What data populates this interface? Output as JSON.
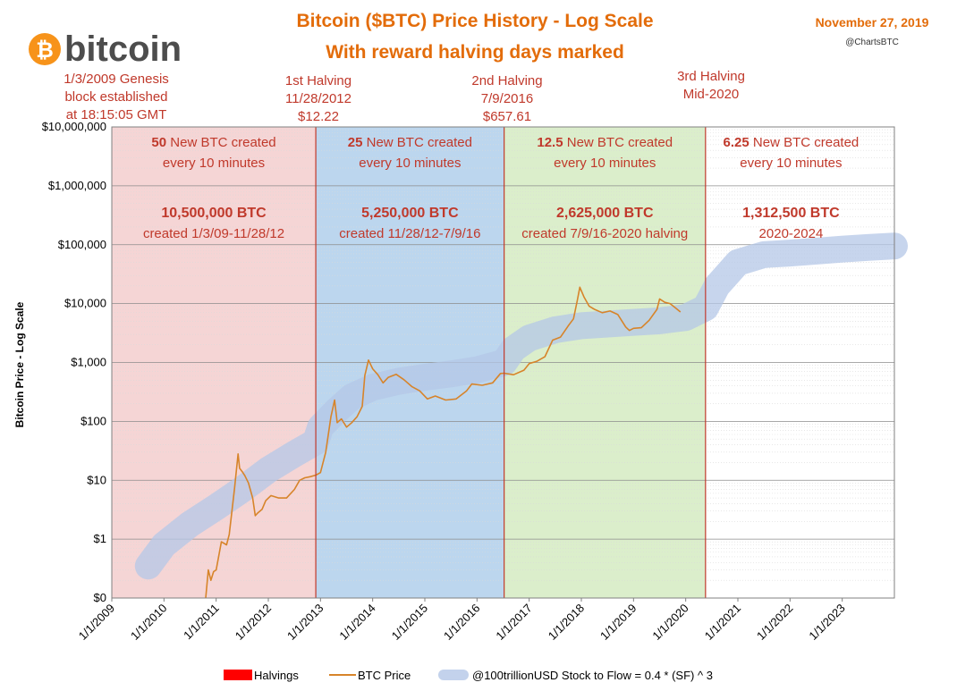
{
  "header": {
    "title_line1": "Bitcoin ($BTC) Price History - Log Scale",
    "title_line2": "With reward halving days marked",
    "date": "November 27, 2019",
    "handle": "@ChartsBTC",
    "logo_text": "bitcoin",
    "logo_symbol": "₿"
  },
  "annotations": {
    "genesis": [
      "1/3/2009 Genesis",
      "block established",
      "at 18:15:05 GMT"
    ],
    "halving1": [
      "1st Halving",
      "11/28/2012",
      "$12.22"
    ],
    "halving2": [
      "2nd Halving",
      "7/9/2016",
      "$657.61"
    ],
    "halving3": [
      "3rd Halving",
      "Mid-2020"
    ]
  },
  "eras": [
    {
      "reward_num": "50",
      "reward_text": " New BTC created",
      "every": "every 10 minutes",
      "supply": "10,500,000 BTC",
      "period": "created 1/3/09-11/28/12",
      "start": 2009.0,
      "end": 2012.91,
      "color": "#f5d5d5"
    },
    {
      "reward_num": "25",
      "reward_text": " New BTC created",
      "every": "every 10 minutes",
      "supply": "5,250,000 BTC",
      "period": "created 11/28/12-7/9/16",
      "start": 2012.91,
      "end": 2016.52,
      "color": "#bcd6ee"
    },
    {
      "reward_num": "12.5",
      "reward_text": " New BTC created",
      "every": "every 10 minutes",
      "supply": "2,625,000 BTC",
      "period": "created 7/9/16-2020 halving",
      "start": 2016.52,
      "end": 2020.38,
      "color": "#dbeecb"
    },
    {
      "reward_num": "6.25",
      "reward_text": " New BTC created",
      "every": "every 10 minutes",
      "supply": "1,312,500 BTC",
      "period": "2020-2024",
      "start": 2020.38,
      "end": 2024.0,
      "color": "#ffffff"
    }
  ],
  "legend": {
    "halvings": "Halvings",
    "price": "BTC Price",
    "s2f": "@100trillionUSD Stock to Flow = 0.4 * (SF) ^ 3"
  },
  "colors": {
    "price": "#d7842a",
    "s2f": "#b4c7e7",
    "halving": "#c0392b",
    "legend_halving": "#ff0000"
  },
  "chart_data": {
    "type": "line",
    "title": "Bitcoin ($BTC) Price History - Log Scale",
    "subtitle": "With reward halving days marked",
    "ylabel": "Bitcoin Price - Log Scale",
    "xlabel": "",
    "y_scale": "log",
    "ylim": [
      0.1,
      10000000
    ],
    "xlim": [
      2009.0,
      2024.0
    ],
    "y_ticks": [
      {
        "value": 10000000,
        "label": "$10,000,000"
      },
      {
        "value": 1000000,
        "label": "$1,000,000"
      },
      {
        "value": 100000,
        "label": "$100,000"
      },
      {
        "value": 10000,
        "label": "$10,000"
      },
      {
        "value": 1000,
        "label": "$1,000"
      },
      {
        "value": 100,
        "label": "$100"
      },
      {
        "value": 10,
        "label": "$10"
      },
      {
        "value": 1,
        "label": "$1"
      },
      {
        "value": 0.1,
        "label": "$0"
      }
    ],
    "x_ticks": [
      {
        "value": 2009,
        "label": "1/1/2009"
      },
      {
        "value": 2010,
        "label": "1/1/2010"
      },
      {
        "value": 2011,
        "label": "1/1/2011"
      },
      {
        "value": 2012,
        "label": "1/1/2012"
      },
      {
        "value": 2013,
        "label": "1/1/2013"
      },
      {
        "value": 2014,
        "label": "1/1/2014"
      },
      {
        "value": 2015,
        "label": "1/1/2015"
      },
      {
        "value": 2016,
        "label": "1/1/2016"
      },
      {
        "value": 2017,
        "label": "1/1/2017"
      },
      {
        "value": 2018,
        "label": "1/1/2018"
      },
      {
        "value": 2019,
        "label": "1/1/2019"
      },
      {
        "value": 2020,
        "label": "1/1/2020"
      },
      {
        "value": 2021,
        "label": "1/1/2021"
      },
      {
        "value": 2022,
        "label": "1/1/2022"
      },
      {
        "value": 2023,
        "label": "1/1/2023"
      }
    ],
    "halvings": [
      2012.91,
      2016.52,
      2020.38
    ],
    "grid": true,
    "legend_position": "bottom",
    "series": [
      {
        "name": "BTC Price",
        "type": "line",
        "x": [
          2010.8,
          2010.85,
          2010.9,
          2010.95,
          2011.0,
          2011.1,
          2011.2,
          2011.25,
          2011.35,
          2011.42,
          2011.45,
          2011.5,
          2011.55,
          2011.62,
          2011.7,
          2011.75,
          2011.8,
          2011.88,
          2011.95,
          2012.05,
          2012.2,
          2012.35,
          2012.5,
          2012.6,
          2012.7,
          2012.8,
          2012.91,
          2013.0,
          2013.1,
          2013.2,
          2013.27,
          2013.32,
          2013.4,
          2013.5,
          2013.6,
          2013.7,
          2013.8,
          2013.85,
          2013.92,
          2014.0,
          2014.1,
          2014.2,
          2014.3,
          2014.45,
          2014.6,
          2014.75,
          2014.9,
          2015.05,
          2015.2,
          2015.4,
          2015.6,
          2015.8,
          2015.9,
          2016.1,
          2016.3,
          2016.45,
          2016.52,
          2016.7,
          2016.9,
          2017.0,
          2017.15,
          2017.3,
          2017.45,
          2017.6,
          2017.75,
          2017.85,
          2017.92,
          2017.97,
          2018.05,
          2018.15,
          2018.25,
          2018.4,
          2018.55,
          2018.7,
          2018.85,
          2018.92,
          2019.0,
          2019.15,
          2019.3,
          2019.45,
          2019.5,
          2019.6,
          2019.7,
          2019.8,
          2019.9
        ],
        "y": [
          0.1,
          0.3,
          0.2,
          0.28,
          0.3,
          0.9,
          0.8,
          1.2,
          7.0,
          28.0,
          16.0,
          14.0,
          12.0,
          9.0,
          5.0,
          2.5,
          2.8,
          3.2,
          4.5,
          5.5,
          5.0,
          5.0,
          7.0,
          10.0,
          11.0,
          11.5,
          12.22,
          13.5,
          30.0,
          120.0,
          230.0,
          95.0,
          110.0,
          80.0,
          95.0,
          120.0,
          180.0,
          600.0,
          1100.0,
          780.0,
          620.0,
          450.0,
          560.0,
          630.0,
          510.0,
          390.0,
          330.0,
          240.0,
          270.0,
          230.0,
          240.0,
          330.0,
          430.0,
          410.0,
          450.0,
          650.0,
          657.61,
          620.0,
          740.0,
          960.0,
          1050.0,
          1250.0,
          2400.0,
          2700.0,
          4200.0,
          5500.0,
          11000.0,
          19000.0,
          13000.0,
          9000.0,
          8000.0,
          7000.0,
          7500.0,
          6500.0,
          4000.0,
          3500.0,
          3800.0,
          3900.0,
          5200.0,
          8000.0,
          12000.0,
          10500.0,
          10000.0,
          8500.0,
          7200.0
        ]
      },
      {
        "name": "@100trillionUSD Stock to Flow = 0.4 * (SF) ^ 3",
        "type": "band",
        "x": [
          2009.7,
          2010.0,
          2010.5,
          2011.0,
          2011.5,
          2012.0,
          2012.5,
          2012.91,
          2013.0,
          2013.3,
          2013.6,
          2014.0,
          2014.5,
          2015.0,
          2015.5,
          2016.0,
          2016.52,
          2016.7,
          2017.0,
          2017.5,
          2018.0,
          2018.5,
          2019.0,
          2019.5,
          2020.0,
          2020.38,
          2020.6,
          2021.0,
          2021.5,
          2022.0,
          2022.5,
          2023.0,
          2023.5,
          2024.0
        ],
        "y": [
          0.35,
          0.8,
          1.8,
          3.5,
          7.0,
          15.0,
          28.0,
          45.0,
          80.0,
          150.0,
          260.0,
          380.0,
          480.0,
          560.0,
          640.0,
          750.0,
          1000.0,
          1700.0,
          2600.0,
          3600.0,
          4200.0,
          4500.0,
          4800.0,
          5100.0,
          5800.0,
          8500.0,
          20000.0,
          50000.0,
          68000.0,
          72000.0,
          78000.0,
          84000.0,
          90000.0,
          95000.0
        ]
      }
    ]
  }
}
